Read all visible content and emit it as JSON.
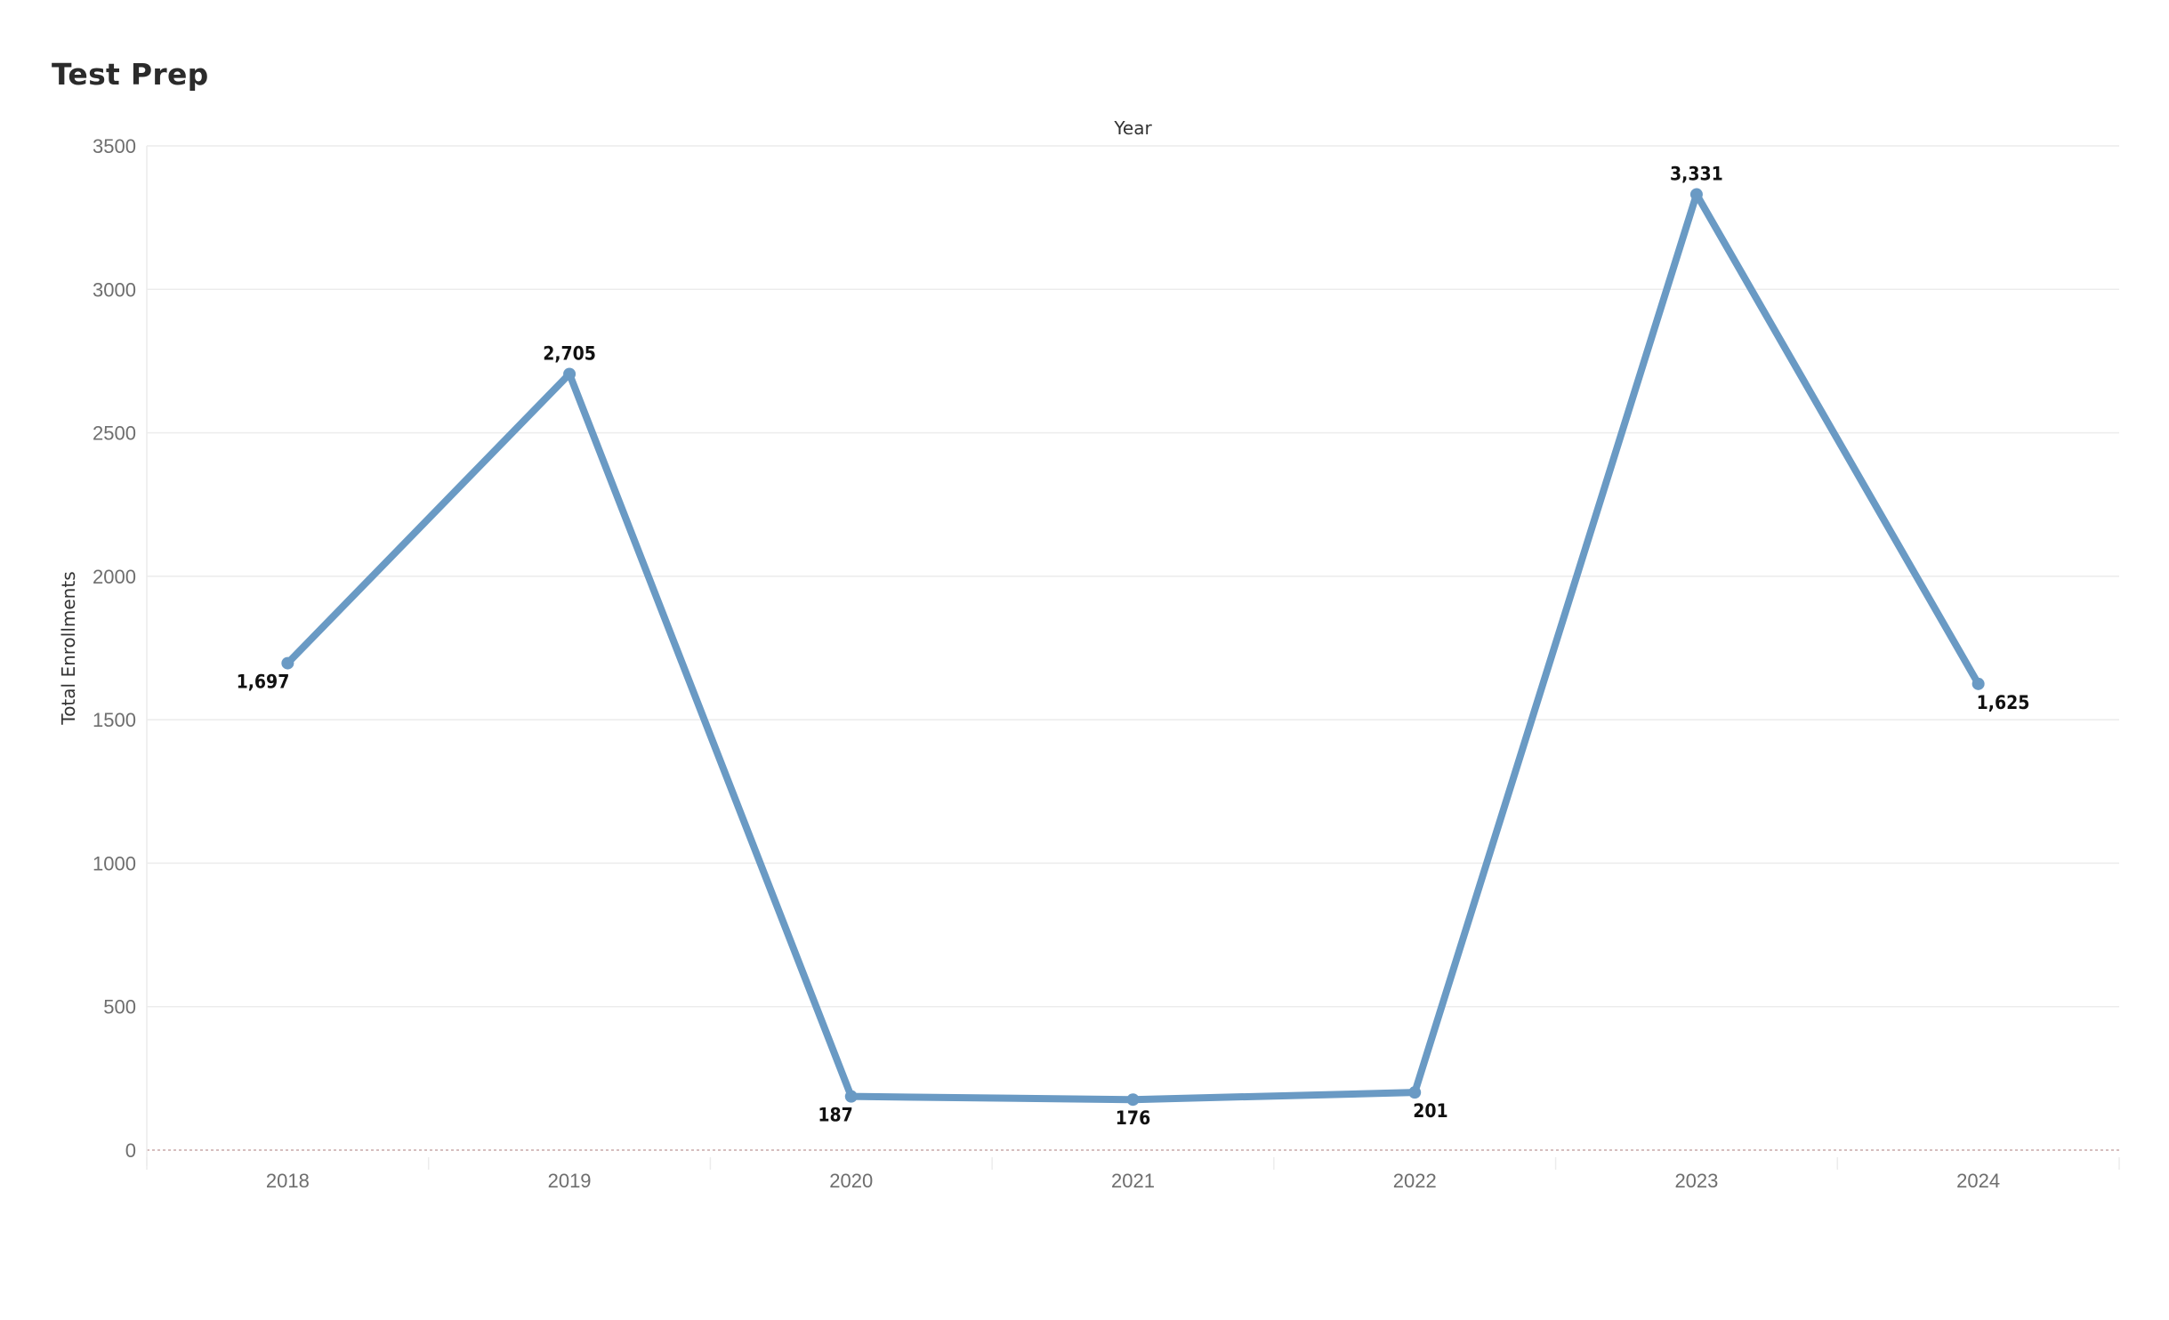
{
  "page": {
    "title": "Test Prep"
  },
  "chart_data": {
    "type": "line",
    "title": "Test Prep",
    "xlabel": "Year",
    "ylabel": "Total Enrollments",
    "categories": [
      "2018",
      "2019",
      "2020",
      "2021",
      "2022",
      "2023",
      "2024"
    ],
    "series": [
      {
        "values": [
          1697,
          2705,
          187,
          176,
          201,
          3331,
          1625
        ],
        "labels": [
          "1,697",
          "2,705",
          "187",
          "176",
          "201",
          "3,331",
          "1,625"
        ],
        "color": "#6a9ac4"
      }
    ],
    "yticks": [
      "0",
      "500",
      "1000",
      "1500",
      "2000",
      "2500",
      "3000",
      "3500"
    ],
    "ylim": [
      0,
      3500
    ],
    "grid": true,
    "legend": "none",
    "colors": {
      "line": "#6a9ac4",
      "grid": "#ececec",
      "zero_line": "#c9a9a9",
      "tick_text": "#6e6e6e",
      "label_text": "#111111"
    }
  }
}
